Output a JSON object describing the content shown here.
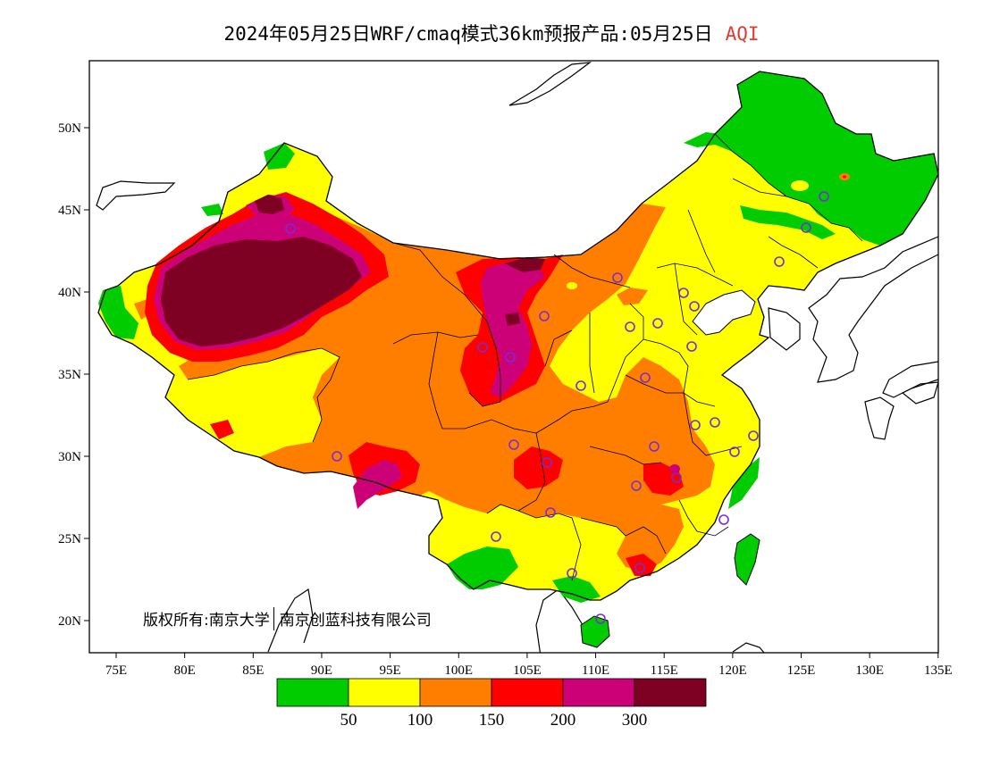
{
  "title": {
    "main": "2024年05月25日WRF/cmaq模式36km预报产品:05月25日",
    "variable": "AQI"
  },
  "axes": {
    "x_ticks": [
      "75E",
      "80E",
      "85E",
      "90E",
      "95E",
      "100E",
      "105E",
      "110E",
      "115E",
      "120E",
      "125E",
      "130E",
      "135E"
    ],
    "y_ticks": [
      "50N",
      "45N",
      "40N",
      "35N",
      "30N",
      "25N",
      "20N"
    ],
    "lon_range": [
      73,
      135
    ],
    "lat_range": [
      18,
      54
    ]
  },
  "legend": {
    "labels": [
      "50",
      "100",
      "150",
      "200",
      "300"
    ],
    "colors": [
      "#00cc00",
      "#ffff00",
      "#ff7e00",
      "#ff0000",
      "#cc0077",
      "#7e0023"
    ]
  },
  "copyright": {
    "left": "版权所有:南京大学",
    "right": "南京创蓝科技有限公司"
  }
}
